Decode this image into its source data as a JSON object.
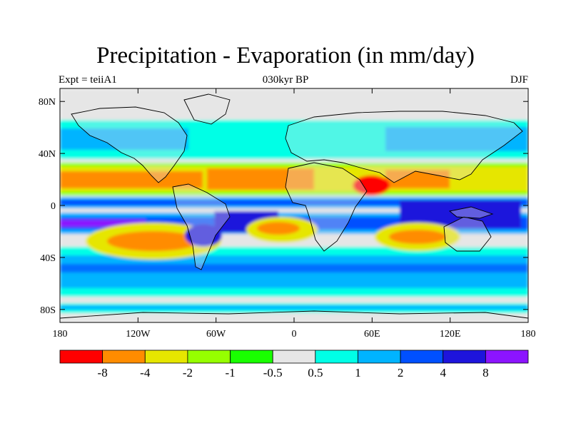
{
  "title": "Precipitation - Evaporation (in mm/day)",
  "subtitle_left": "Expt = teiiA1",
  "subtitle_center": "030kyr BP",
  "subtitle_right": "DJF",
  "map": {
    "projection": "cylindrical equidistant",
    "land_outline": true,
    "lon_range": [
      -180,
      180
    ],
    "lat_range": [
      -90,
      90
    ],
    "lat_ticks": [
      {
        "v": 80,
        "label": "80N"
      },
      {
        "v": 40,
        "label": "40N"
      },
      {
        "v": 0,
        "label": "0"
      },
      {
        "v": -40,
        "label": "40S"
      },
      {
        "v": -80,
        "label": "80S"
      }
    ],
    "lon_ticks": [
      {
        "v": -180,
        "label": "180"
      },
      {
        "v": -120,
        "label": "120W"
      },
      {
        "v": -60,
        "label": "60W"
      },
      {
        "v": 0,
        "label": "0"
      },
      {
        "v": 60,
        "label": "60E"
      },
      {
        "v": 120,
        "label": "120E"
      },
      {
        "v": 180,
        "label": "180"
      }
    ]
  },
  "colorbar": {
    "colors": [
      "#ff0000",
      "#ff8c00",
      "#e6e600",
      "#96ff00",
      "#19ff00",
      "#e6e6e6",
      "#00ffe6",
      "#00b4ff",
      "#0050ff",
      "#1e14dc",
      "#8c14ff"
    ],
    "labels": [
      "-8",
      "-4",
      "-2",
      "-1",
      "-0.5",
      "0.5",
      "1",
      "2",
      "4",
      "8"
    ]
  }
}
